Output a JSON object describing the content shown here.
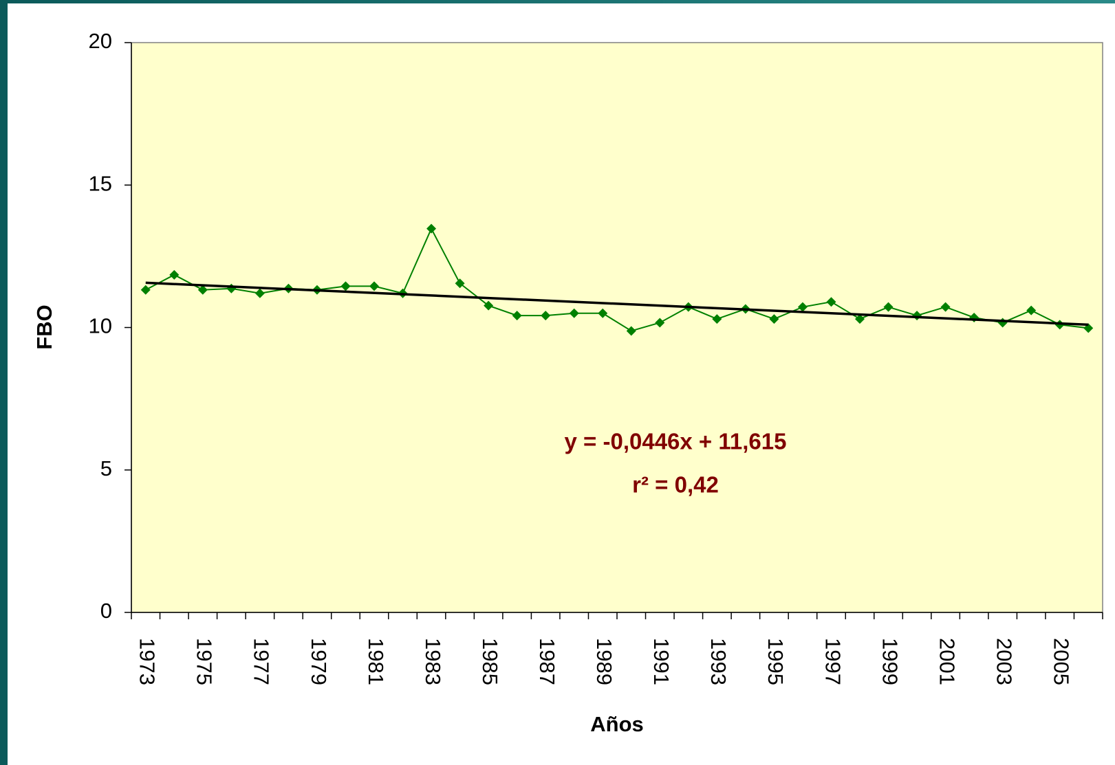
{
  "chart_data": {
    "type": "line",
    "x_label": "Años",
    "y_label": "FBO",
    "categories": [
      "1973",
      null,
      "1975",
      null,
      "1977",
      null,
      "1979",
      null,
      "1981",
      null,
      "1983",
      null,
      "1985",
      null,
      "1987",
      null,
      "1989",
      null,
      "1991",
      null,
      "1993",
      null,
      "1995",
      null,
      "1997",
      null,
      "1999",
      null,
      "2001",
      null,
      "2003",
      null,
      "2005",
      null
    ],
    "series": [
      {
        "color": "#008000",
        "values": [
          11.32,
          11.85,
          11.32,
          11.37,
          11.2,
          11.37,
          11.32,
          11.45,
          11.45,
          11.2,
          13.47,
          11.55,
          10.77,
          10.42,
          10.42,
          10.5,
          10.5,
          9.88,
          10.17,
          10.72,
          10.3,
          10.65,
          10.3,
          10.72,
          10.9,
          10.3,
          10.72,
          10.42,
          10.72,
          10.35,
          10.17,
          10.6,
          10.1,
          9.98
        ]
      }
    ],
    "trendline": {
      "slope": -0.0446,
      "intercept": 11.615,
      "color": "#000000"
    },
    "annotations": [
      "y = -0,0446x + 11,615",
      "r² = 0,42"
    ],
    "annotation_color": "#800000",
    "plot_background": "#ffffcc",
    "ylim": [
      0,
      20
    ],
    "yticks": [
      0,
      5,
      10,
      15,
      20
    ]
  }
}
